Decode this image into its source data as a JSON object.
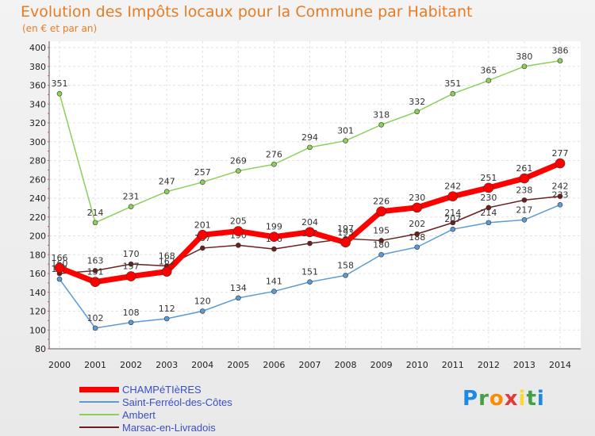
{
  "chart_data": {
    "type": "line",
    "title": "Evolution des Impôts locaux pour la Commune par Habitant",
    "subtitle": "(en € et par an)",
    "x": [
      "2000",
      "2001",
      "2002",
      "2003",
      "2004",
      "2005",
      "2006",
      "2007",
      "2008",
      "2009",
      "2010",
      "2011",
      "2012",
      "2013",
      "2014"
    ],
    "ylim": [
      80,
      400
    ],
    "yticks": [
      80,
      100,
      120,
      140,
      160,
      180,
      200,
      220,
      240,
      260,
      280,
      300,
      320,
      340,
      360,
      380,
      400
    ],
    "series": [
      {
        "name": "Ambert",
        "color": "#8ccf5a",
        "values": [
          351,
          214,
          231,
          247,
          257,
          269,
          276,
          294,
          301,
          318,
          332,
          351,
          365,
          380,
          386
        ]
      },
      {
        "name": "Saint-Ferréol-des-Côtes",
        "color": "#5a9bd5",
        "values": [
          154,
          102,
          108,
          112,
          120,
          134,
          141,
          151,
          158,
          180,
          188,
          207,
          214,
          217,
          233
        ]
      },
      {
        "name": "Marsac-en-Livradois",
        "color": "#6b1f1f",
        "values": [
          160,
          163,
          170,
          168,
          187,
          190,
          186,
          192,
          197,
          195,
          202,
          214,
          230,
          238,
          242
        ]
      },
      {
        "name": "CHAMPéTIèRES",
        "color": "#ff0000",
        "values": [
          166,
          151,
          157,
          162,
          201,
          205,
          199,
          204,
          193,
          226,
          230,
          242,
          251,
          261,
          277
        ]
      }
    ],
    "legend_order": [
      "CHAMPéTIèRES",
      "Saint-Ferréol-des-Côtes",
      "Ambert",
      "Marsac-en-Livradois"
    ]
  },
  "logo": {
    "letters": [
      "P",
      "r",
      "o",
      "x",
      "i",
      "t",
      "i"
    ],
    "colors": [
      "#1e88e5",
      "#43a047",
      "#fb8c00",
      "#e53935",
      "#fdd835",
      "#43a047",
      "#1e88e5"
    ]
  }
}
